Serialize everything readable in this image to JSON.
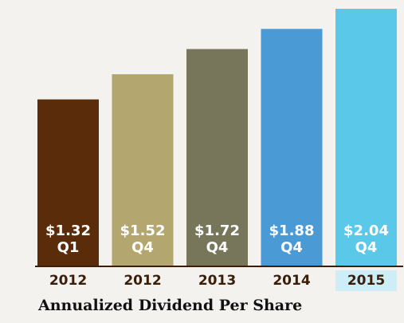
{
  "chart_data": {
    "type": "bar",
    "title": "Annualized Dividend Per Share",
    "categories": [
      "2012",
      "2012",
      "2013",
      "2014",
      "2015"
    ],
    "values": [
      1.32,
      1.52,
      1.72,
      1.88,
      2.04
    ],
    "value_labels": [
      "$1.32",
      "$1.52",
      "$1.72",
      "$1.88",
      "$2.04"
    ],
    "quarters": [
      "Q1",
      "Q4",
      "Q4",
      "Q4",
      "Q4"
    ],
    "colors": [
      "#5a2c0a",
      "#b3a76f",
      "#77765a",
      "#4a9ad6",
      "#5ac8e8"
    ],
    "highlight_category": "2015",
    "highlight_color": "#cdeef7"
  }
}
